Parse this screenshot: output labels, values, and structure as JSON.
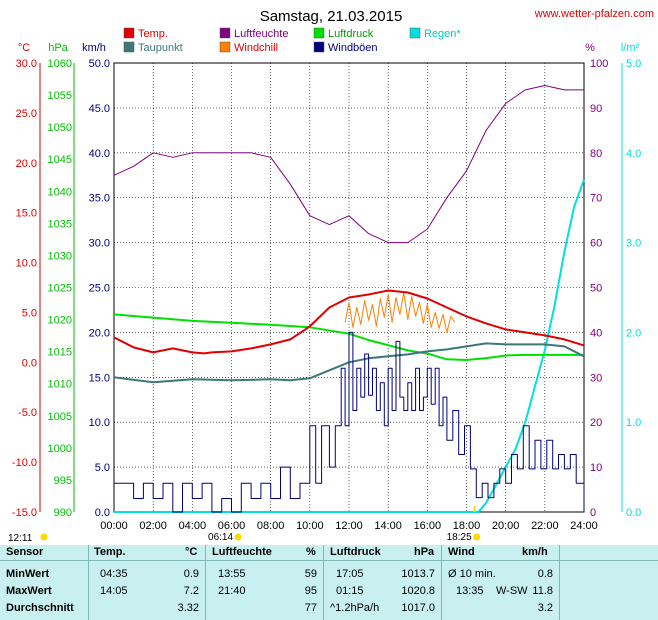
{
  "header": {
    "title": "Samstag, 21.03.2015",
    "site": "www.wetter-pfalzen.com"
  },
  "axes": {
    "temp_unit": "°C",
    "pressure_unit": "hPa",
    "wind_unit": "km/h",
    "humidity_unit": "%",
    "rain_unit": "l/m²",
    "temp_ticks": [
      "30.0",
      "25.0",
      "20.0",
      "15.0",
      "10.0",
      "5.0",
      "0.0",
      "-5.0",
      "-10.0",
      "-15.0"
    ],
    "pressure_ticks": [
      "1060",
      "1055",
      "1050",
      "1045",
      "1040",
      "1035",
      "1030",
      "1025",
      "1020",
      "1015",
      "1010",
      "1005",
      "1000",
      "995",
      "990"
    ],
    "wind_ticks": [
      "50.0",
      "45.0",
      "40.0",
      "35.0",
      "30.0",
      "25.0",
      "20.0",
      "15.0",
      "10.0",
      "5.0",
      "0.0"
    ],
    "humidity_ticks": [
      "100",
      "90",
      "80",
      "70",
      "60",
      "50",
      "40",
      "30",
      "20",
      "10",
      "0"
    ],
    "rain_ticks": [
      "5.0",
      "4.0",
      "3.0",
      "2.0",
      "1.0",
      "0.0"
    ],
    "time_ticks": [
      "00:00",
      "02:00",
      "04:00",
      "06:00",
      "08:00",
      "10:00",
      "12:00",
      "14:00",
      "16:00",
      "18:00",
      "20:00",
      "22:00",
      "24:00"
    ]
  },
  "legend": [
    {
      "label": "Temp.",
      "color": "#e00000"
    },
    {
      "label": "Taupunkt",
      "color": "#3c7878"
    },
    {
      "label": "Luftfeuchte",
      "color": "#800080"
    },
    {
      "label": "Windchill",
      "color": "#ff8000"
    },
    {
      "label": "Luftdruck",
      "color": "#00e000"
    },
    {
      "label": "Windböen",
      "color": "#000080"
    },
    {
      "label": "Regen*",
      "color": "#00e0e0"
    }
  ],
  "sun": {
    "moonrise": "12:11",
    "sunrise": "06:14",
    "sunset": "18:25"
  },
  "chart_data": {
    "type": "line",
    "x_unit": "hours",
    "xlim": [
      0,
      24
    ],
    "series": [
      {
        "name": "Temp.",
        "axis": "temp",
        "color": "#e00000",
        "points": [
          [
            0,
            2.5
          ],
          [
            1,
            1.5
          ],
          [
            2,
            1.0
          ],
          [
            3,
            1.4
          ],
          [
            4,
            1.0
          ],
          [
            4.6,
            0.9
          ],
          [
            5,
            1.0
          ],
          [
            6,
            1.1
          ],
          [
            7,
            1.4
          ],
          [
            8,
            1.8
          ],
          [
            9,
            2.3
          ],
          [
            10,
            3.6
          ],
          [
            11,
            5.5
          ],
          [
            12,
            6.5
          ],
          [
            13,
            6.8
          ],
          [
            14,
            7.2
          ],
          [
            15,
            7.0
          ],
          [
            16,
            6.4
          ],
          [
            17,
            5.5
          ],
          [
            18,
            4.6
          ],
          [
            19,
            3.9
          ],
          [
            20,
            3.3
          ],
          [
            21,
            3.0
          ],
          [
            22,
            2.7
          ],
          [
            23,
            2.3
          ],
          [
            24,
            1.7
          ]
        ]
      },
      {
        "name": "Taupunkt",
        "axis": "temp",
        "color": "#3c7878",
        "points": [
          [
            0,
            -1.5
          ],
          [
            2,
            -2.0
          ],
          [
            4,
            -1.7
          ],
          [
            6,
            -1.8
          ],
          [
            8,
            -1.7
          ],
          [
            9,
            -1.8
          ],
          [
            10,
            -1.6
          ],
          [
            11,
            -0.8
          ],
          [
            12,
            0.0
          ],
          [
            13,
            0.4
          ],
          [
            14,
            0.6
          ],
          [
            15,
            0.8
          ],
          [
            16,
            1.1
          ],
          [
            17,
            1.3
          ],
          [
            18,
            1.6
          ],
          [
            19,
            1.9
          ],
          [
            20,
            1.8
          ],
          [
            21,
            1.8
          ],
          [
            22,
            1.8
          ],
          [
            23,
            1.6
          ],
          [
            24,
            0.6
          ]
        ]
      },
      {
        "name": "Luftfeuchte",
        "axis": "humidity",
        "color": "#800080",
        "points": [
          [
            0,
            75
          ],
          [
            1,
            77
          ],
          [
            2,
            80
          ],
          [
            3,
            79
          ],
          [
            4,
            80
          ],
          [
            5,
            80
          ],
          [
            6,
            80
          ],
          [
            7,
            80
          ],
          [
            8,
            79
          ],
          [
            9,
            73
          ],
          [
            10,
            66
          ],
          [
            11,
            64
          ],
          [
            12,
            66
          ],
          [
            13,
            62
          ],
          [
            14,
            60
          ],
          [
            15,
            60
          ],
          [
            16,
            63
          ],
          [
            17,
            70
          ],
          [
            18,
            76
          ],
          [
            19,
            85
          ],
          [
            20,
            91
          ],
          [
            21,
            94
          ],
          [
            22,
            95
          ],
          [
            23,
            94
          ],
          [
            24,
            94
          ]
        ]
      },
      {
        "name": "Luftdruck",
        "axis": "pressure",
        "color": "#00e000",
        "points": [
          [
            0,
            1020.8
          ],
          [
            2,
            1020.3
          ],
          [
            4,
            1019.8
          ],
          [
            6,
            1019.5
          ],
          [
            8,
            1019.2
          ],
          [
            10,
            1018.8
          ],
          [
            12,
            1017.8
          ],
          [
            13,
            1016.8
          ],
          [
            14,
            1016.0
          ],
          [
            15,
            1015.2
          ],
          [
            16,
            1014.7
          ],
          [
            17,
            1013.8
          ],
          [
            18,
            1013.7
          ],
          [
            19,
            1014.0
          ],
          [
            20,
            1014.4
          ],
          [
            21,
            1014.5
          ],
          [
            22,
            1014.5
          ],
          [
            23,
            1014.5
          ],
          [
            24,
            1014.5
          ]
        ]
      },
      {
        "name": "Windchill",
        "axis": "temp",
        "color": "#ff8000",
        "points": [
          [
            11.8,
            4.0
          ],
          [
            12.0,
            6.0
          ],
          [
            12.2,
            3.5
          ],
          [
            12.4,
            5.5
          ],
          [
            12.6,
            3.8
          ],
          [
            12.8,
            6.2
          ],
          [
            13.0,
            4.2
          ],
          [
            13.2,
            5.8
          ],
          [
            13.4,
            3.6
          ],
          [
            13.6,
            6.4
          ],
          [
            13.8,
            4.5
          ],
          [
            14.0,
            6.8
          ],
          [
            14.2,
            4.0
          ],
          [
            14.4,
            6.5
          ],
          [
            14.6,
            4.8
          ],
          [
            14.8,
            7.0
          ],
          [
            15.0,
            4.3
          ],
          [
            15.2,
            6.6
          ],
          [
            15.4,
            4.6
          ],
          [
            15.6,
            6.0
          ],
          [
            15.8,
            3.9
          ],
          [
            16.0,
            5.8
          ],
          [
            16.2,
            3.5
          ],
          [
            16.4,
            5.0
          ],
          [
            16.6,
            3.4
          ],
          [
            16.8,
            4.8
          ],
          [
            17.0,
            3.0
          ],
          [
            17.2,
            4.6
          ],
          [
            17.4,
            4.0
          ]
        ]
      },
      {
        "name": "Windböen",
        "axis": "wind",
        "color": "#000080",
        "points": [
          [
            0,
            3.2
          ],
          [
            0.5,
            3.2
          ],
          [
            1,
            1.5
          ],
          [
            1.5,
            3.2
          ],
          [
            2,
            1.5
          ],
          [
            2.5,
            3.2
          ],
          [
            3,
            0
          ],
          [
            3.5,
            3.2
          ],
          [
            4,
            1.5
          ],
          [
            4.5,
            3.2
          ],
          [
            5,
            0
          ],
          [
            5.5,
            1.5
          ],
          [
            6,
            0
          ],
          [
            6.5,
            3.2
          ],
          [
            7,
            1.5
          ],
          [
            7.5,
            3.2
          ],
          [
            8,
            1.5
          ],
          [
            8.5,
            5.0
          ],
          [
            9,
            1.5
          ],
          [
            9.5,
            3.2
          ],
          [
            10,
            9.6
          ],
          [
            10.3,
            3.2
          ],
          [
            10.6,
            9.6
          ],
          [
            11,
            5.0
          ],
          [
            11.3,
            9.6
          ],
          [
            11.6,
            16.0
          ],
          [
            11.8,
            9.6
          ],
          [
            12,
            20.0
          ],
          [
            12.2,
            11.3
          ],
          [
            12.4,
            16.0
          ],
          [
            12.6,
            12.8
          ],
          [
            12.8,
            17.6
          ],
          [
            13,
            13.0
          ],
          [
            13.2,
            16.0
          ],
          [
            13.4,
            11.3
          ],
          [
            13.6,
            14.4
          ],
          [
            13.8,
            9.6
          ],
          [
            14,
            16.0
          ],
          [
            14.2,
            11.3
          ],
          [
            14.4,
            19.0
          ],
          [
            14.6,
            12.8
          ],
          [
            14.8,
            11.3
          ],
          [
            15,
            14.4
          ],
          [
            15.2,
            11.3
          ],
          [
            15.4,
            16.0
          ],
          [
            15.6,
            11.3
          ],
          [
            15.8,
            12.8
          ],
          [
            16,
            16.0
          ],
          [
            16.2,
            12.0
          ],
          [
            16.4,
            16.0
          ],
          [
            16.6,
            9.6
          ],
          [
            16.8,
            12.8
          ],
          [
            17,
            8.0
          ],
          [
            17.3,
            11.3
          ],
          [
            17.6,
            6.4
          ],
          [
            17.9,
            9.6
          ],
          [
            18.2,
            4.8
          ],
          [
            18.5,
            1.6
          ],
          [
            18.8,
            3.2
          ],
          [
            19.1,
            1.6
          ],
          [
            19.4,
            3.2
          ],
          [
            19.7,
            4.8
          ],
          [
            20,
            3.2
          ],
          [
            20.3,
            6.4
          ],
          [
            20.6,
            4.8
          ],
          [
            20.9,
            9.6
          ],
          [
            21.2,
            4.8
          ],
          [
            21.5,
            8.0
          ],
          [
            21.8,
            4.8
          ],
          [
            22.1,
            8.0
          ],
          [
            22.4,
            4.8
          ],
          [
            22.7,
            6.4
          ],
          [
            23,
            4.8
          ],
          [
            23.3,
            6.4
          ],
          [
            23.6,
            3.2
          ],
          [
            24,
            0
          ]
        ]
      },
      {
        "name": "Regen*",
        "axis": "rain",
        "color": "#00e0e0",
        "points": [
          [
            0,
            0
          ],
          [
            18.6,
            0
          ],
          [
            19.0,
            0.1
          ],
          [
            19.5,
            0.3
          ],
          [
            20,
            0.5
          ],
          [
            20.5,
            0.7
          ],
          [
            21,
            1.0
          ],
          [
            21.5,
            1.4
          ],
          [
            22,
            1.8
          ],
          [
            22.5,
            2.3
          ],
          [
            23,
            2.9
          ],
          [
            23.5,
            3.4
          ],
          [
            24,
            3.7
          ]
        ]
      }
    ],
    "axes_ranges": {
      "temp": [
        -15,
        30
      ],
      "pressure": [
        990,
        1060
      ],
      "wind": [
        0,
        50
      ],
      "humidity": [
        0,
        100
      ],
      "rain": [
        0,
        5
      ]
    },
    "grid": true
  },
  "stats": {
    "headers": {
      "sensor": "Sensor",
      "temp": "Temp.",
      "temp_unit": "°C",
      "hum": "Luftfeuchte",
      "hum_unit": "%",
      "press": "Luftdruck",
      "press_unit": "hPa",
      "wind": "Wind",
      "wind_unit": "km/h"
    },
    "rows": [
      {
        "label": "MinWert",
        "t_time": "04:35",
        "t_val": "0.9",
        "h_time": "13:55",
        "h_val": "59",
        "p_time": "17:05",
        "p_val": "1013.7",
        "w_time": "Ø 10 min.",
        "w_val": "0.8"
      },
      {
        "label": "MaxWert",
        "t_time": "14:05",
        "t_val": "7.2",
        "h_time": "21:40",
        "h_val": "95",
        "p_time": "01:15",
        "p_val": "1020.8",
        "w_time": "13:35",
        "w_dir": "W-SW",
        "w_val": "11.8"
      },
      {
        "label": "Durchschnitt",
        "t_time": "",
        "t_val": "3.32",
        "h_time": "",
        "h_val": "77",
        "p_time": "^1.2hPa/h",
        "p_val": "1017.0",
        "w_time": "",
        "w_val": "3.2"
      }
    ]
  }
}
